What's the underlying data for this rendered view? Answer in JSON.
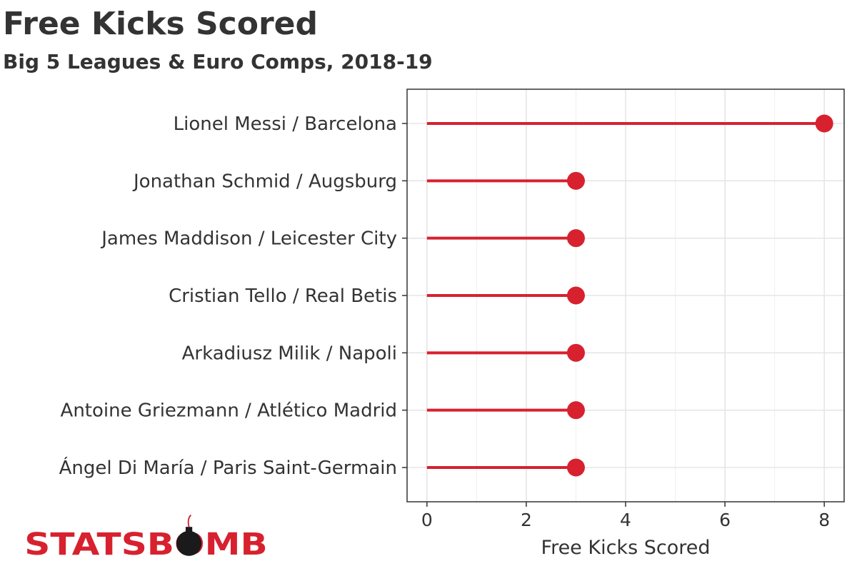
{
  "chart_data": {
    "type": "bar",
    "style": "lollipop",
    "title": "Free Kicks Scored",
    "subtitle": "Big 5 Leagues & Euro Comps, 2018-19",
    "xlabel": "Free Kicks Scored",
    "ylabel": "",
    "xlim": [
      -0.4,
      8.4
    ],
    "xticks": [
      0,
      2,
      4,
      6,
      8
    ],
    "grid": true,
    "categories": [
      "Lionel Messi / Barcelona",
      "Jonathan Schmid / Augsburg",
      "James Maddison / Leicester City",
      "Cristian Tello / Real Betis",
      "Arkadiusz Milik / Napoli",
      "Antoine Griezmann / Atlético Madrid",
      "Ángel Di María / Paris Saint-Germain"
    ],
    "values": [
      8,
      3,
      3,
      3,
      3,
      3,
      3
    ],
    "color": "#d7212f"
  },
  "logo": {
    "text": "STATSBOMB",
    "color": "#d7212f"
  }
}
